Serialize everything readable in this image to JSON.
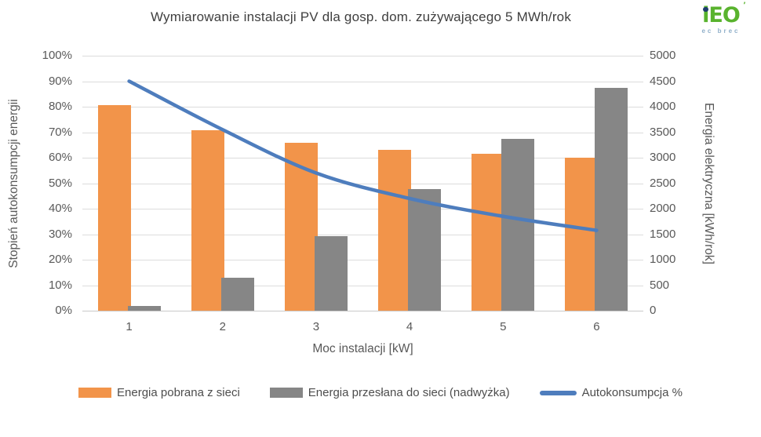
{
  "header": {
    "title": "Wymiarowanie instalacji PV dla gosp. dom. zużywającego 5 MWh/rok",
    "logo": {
      "brand": "iEO",
      "mark": "’",
      "sub": "ec brec"
    }
  },
  "chart_data": {
    "type": "combo",
    "title": "Wymiarowanie instalacji PV dla gosp. dom. zużywającego 5 MWh/rok",
    "categories": [
      "1",
      "2",
      "3",
      "4",
      "5",
      "6"
    ],
    "series": [
      {
        "name": "Energia pobrana z sieci",
        "type": "bar",
        "axis": "right",
        "color": "#F2944A",
        "values": [
          4030,
          3540,
          3290,
          3150,
          3070,
          3000
        ]
      },
      {
        "name": "Energia przesłana do sieci (nadwyżka)",
        "type": "bar",
        "axis": "right",
        "color": "#868686",
        "values": [
          90,
          650,
          1460,
          2390,
          3370,
          4370
        ]
      },
      {
        "name": "Autokonsumpcja %",
        "type": "line",
        "axis": "left",
        "color": "#4E7DBD",
        "values": [
          90,
          71,
          54,
          44,
          37,
          31.5
        ]
      }
    ],
    "xlabel": "Moc instalacji [kW]",
    "ylabel_left": "Stopień autokonsumpcji energii",
    "ylabel_right": "Energia elektryczna [kWh/rok]",
    "left_axis": {
      "min": 0,
      "max": 100,
      "step": 10,
      "ticks": [
        "0%",
        "10%",
        "20%",
        "30%",
        "40%",
        "50%",
        "60%",
        "70%",
        "80%",
        "90%",
        "100%"
      ]
    },
    "right_axis": {
      "min": 0,
      "max": 5000,
      "step": 500,
      "ticks": [
        "0",
        "500",
        "1000",
        "1500",
        "2000",
        "2500",
        "3000",
        "3500",
        "4000",
        "4500",
        "5000"
      ]
    },
    "grid": true,
    "legend_position": "bottom"
  }
}
